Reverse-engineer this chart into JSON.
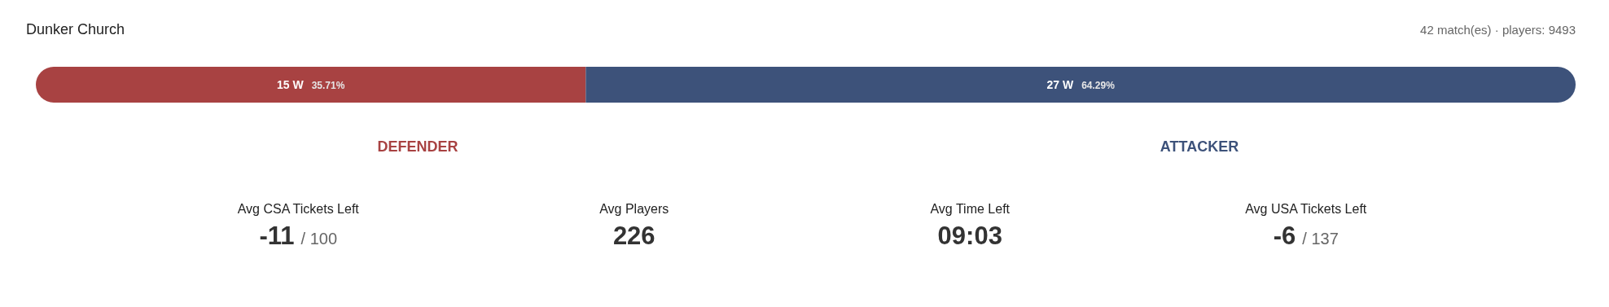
{
  "chart_data": [
    {
      "type": "bar",
      "title": "Dunker Church",
      "subtitle": "42 match(es) · players: 9493",
      "orientation": "horizontal",
      "stacked": true,
      "categories": [
        null
      ],
      "xlim": [
        0,
        42
      ],
      "series": [
        {
          "name": "DEFENDER",
          "color": "#a84242",
          "values": [
            15
          ],
          "value_labels": [
            "15 W"
          ]
        },
        {
          "name": "ATTACKER",
          "color": "#3d527a",
          "values": [
            27
          ],
          "value_labels": [
            "27 W"
          ]
        }
      ],
      "annotations": [
        "35.71%",
        "64.29%"
      ]
    },
    {
      "type": "other",
      "categories": [
        "Avg CSA Tickets Left",
        "Avg Players",
        "Avg Time Left",
        "Avg USA Tickets Left"
      ],
      "value_labels": [
        "-11",
        "226",
        "09:03",
        "-6"
      ],
      "annotations": [
        {
          "text": "/ 100",
          "x": "Avg CSA Tickets Left"
        },
        {
          "text": "/ 137",
          "x": "Avg USA Tickets Left"
        }
      ]
    }
  ]
}
